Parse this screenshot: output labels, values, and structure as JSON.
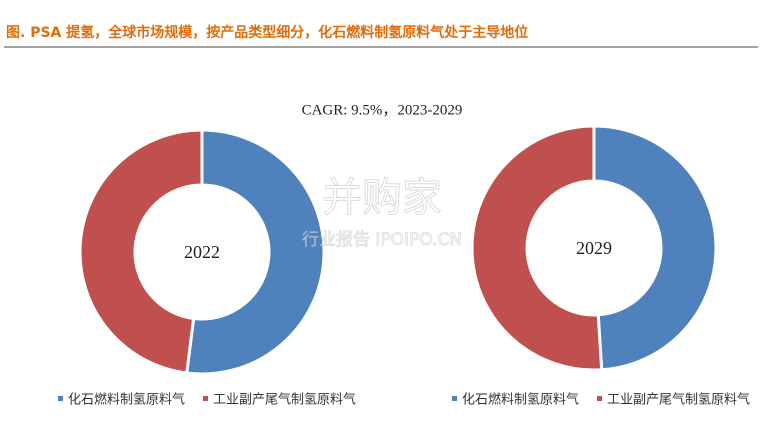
{
  "header": {
    "title": "图.  PSA 提氢，全球市场规模，按产品类型细分，化石燃料制氢原料气处于主导地位"
  },
  "annotation": "CAGR:   9.5%，2023-2029",
  "watermark": {
    "brand": "并购家",
    "sub": "行业报告 IPOIPO.CN"
  },
  "chart_data": [
    {
      "type": "donut",
      "label": "2022",
      "categories": [
        "化石燃料制氢原料气",
        "工业副产尾气制氢原料气"
      ],
      "values": [
        52,
        48
      ],
      "colors": [
        "#4f81bd",
        "#c0504d"
      ]
    },
    {
      "type": "donut",
      "label": "2029",
      "categories": [
        "化石燃料制氢原料气",
        "工业副产尾气制氢原料气"
      ],
      "values": [
        49,
        51
      ],
      "colors": [
        "#4f81bd",
        "#c0504d"
      ]
    }
  ]
}
